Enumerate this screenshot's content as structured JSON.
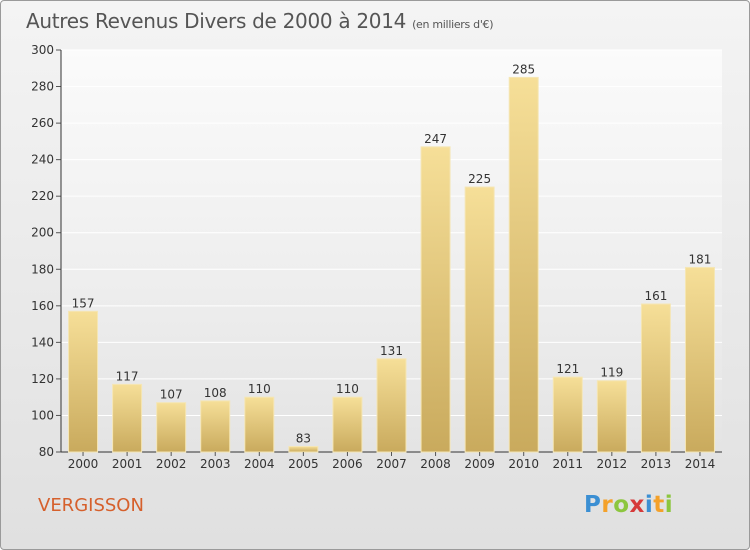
{
  "chart_data": {
    "type": "bar",
    "title": "Autres Revenus Divers de 2000 à 2014",
    "subtitle": "(en milliers d'€)",
    "categories": [
      "2000",
      "2001",
      "2002",
      "2003",
      "2004",
      "2005",
      "2006",
      "2007",
      "2008",
      "2009",
      "2010",
      "2011",
      "2012",
      "2013",
      "2014"
    ],
    "values": [
      157,
      117,
      107,
      108,
      110,
      83,
      110,
      131,
      247,
      225,
      285,
      121,
      119,
      161,
      181
    ],
    "ylim": [
      80,
      300
    ],
    "yticks": [
      80,
      100,
      120,
      140,
      160,
      180,
      200,
      220,
      240,
      260,
      280,
      300
    ],
    "grid": true,
    "bar_color": "#e8cc7a"
  },
  "footer": {
    "commune": "VERGISSON",
    "logo": "Proxiti"
  }
}
